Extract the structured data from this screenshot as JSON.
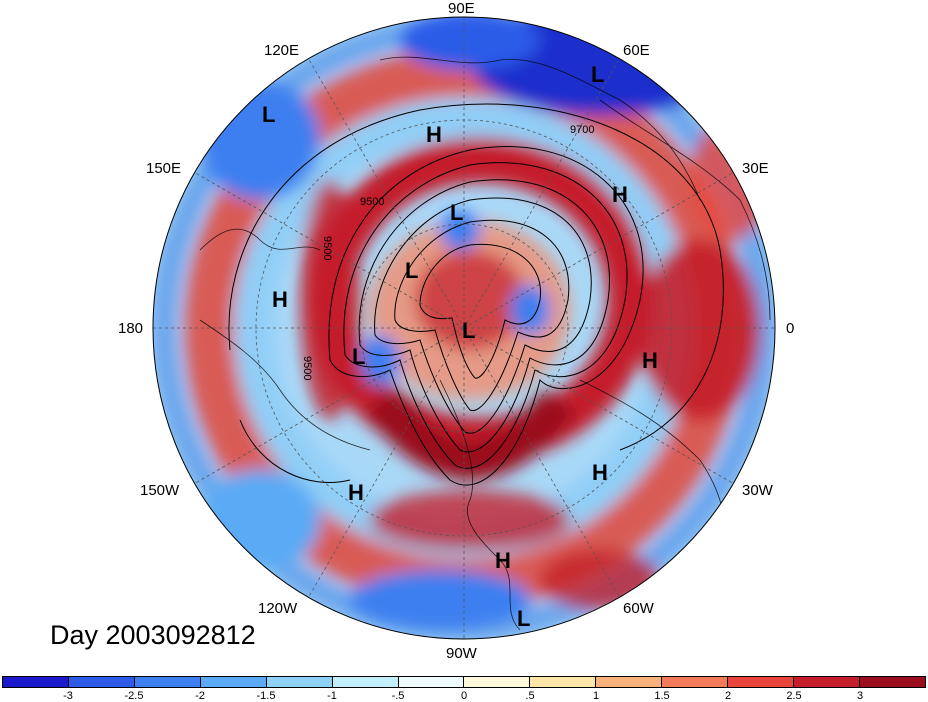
{
  "title": "Day 2003092812",
  "projection": "north-polar-stereographic",
  "longitude_labels": {
    "e90": "90E",
    "e60": "60E",
    "e120": "120E",
    "e30": "30E",
    "e150": "150E",
    "lon180": "180",
    "lon0": "0",
    "w150": "150W",
    "w30": "30W",
    "w120": "120W",
    "w60": "60W",
    "w90": "90W"
  },
  "pressure_centers": [
    {
      "id": "c1",
      "label": "L"
    },
    {
      "id": "c2",
      "label": "L"
    },
    {
      "id": "c3",
      "label": "H"
    },
    {
      "id": "c4",
      "label": "H"
    },
    {
      "id": "c5",
      "label": "L"
    },
    {
      "id": "c6",
      "label": "L"
    },
    {
      "id": "c7",
      "label": "H"
    },
    {
      "id": "c8",
      "label": "L"
    },
    {
      "id": "c9",
      "label": "L"
    },
    {
      "id": "c10",
      "label": "H"
    },
    {
      "id": "c11",
      "label": "H"
    },
    {
      "id": "c12",
      "label": "H"
    },
    {
      "id": "c13",
      "label": "H"
    },
    {
      "id": "c14",
      "label": "L"
    }
  ],
  "contour_labels": {
    "a": "9700",
    "b": "9500",
    "c": "9500",
    "d": "9500"
  },
  "colorbar": {
    "colors": [
      "#1a1acc",
      "#2c5be8",
      "#3c7ff0",
      "#5aaaf5",
      "#8ed2fa",
      "#c3effd",
      "#eefcff",
      "#fff9dc",
      "#fde6a8",
      "#f9b27a",
      "#f37b5a",
      "#e8453c",
      "#c41e2a",
      "#9a0d1c"
    ],
    "ticks": [
      "-3",
      "-2.5",
      "-2",
      "-1.5",
      "-1",
      "-.5",
      "0",
      ".5",
      "1",
      "1.5",
      "2",
      "2.5",
      "3"
    ]
  }
}
